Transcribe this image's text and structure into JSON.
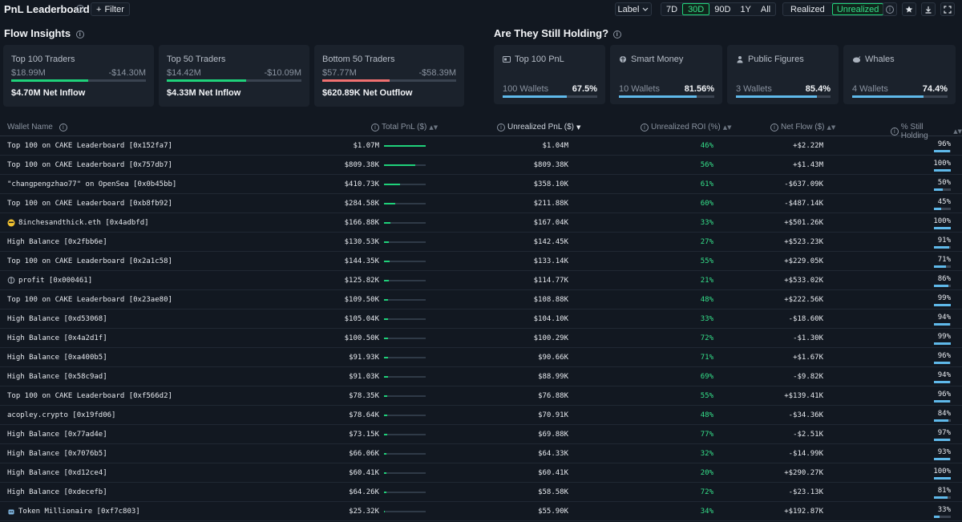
{
  "header": {
    "title": "PnL Leaderboard",
    "filter_label": "Filter",
    "label_dropdown": "Label",
    "timeframes": [
      "7D",
      "30D",
      "90D",
      "1Y",
      "All"
    ],
    "active_timeframe": "30D",
    "modes": [
      "Realized",
      "Unrealized"
    ],
    "active_mode": "Unrealized",
    "tools": [
      "info-icon",
      "star-icon",
      "download-icon",
      "expand-icon"
    ]
  },
  "flow_insights": {
    "title": "Flow Insights",
    "cards": [
      {
        "title": "Top 100 Traders",
        "left": "$18.99M",
        "right": "-$14.30M",
        "net": "$4.70M Net Inflow",
        "left_share": 0.57,
        "color": "#1fd17a"
      },
      {
        "title": "Top 50 Traders",
        "left": "$14.42M",
        "right": "-$10.09M",
        "net": "$4.33M Net Inflow",
        "left_share": 0.59,
        "color": "#1fd17a"
      },
      {
        "title": "Bottom 50 Traders",
        "left": "$57.77M",
        "right": "-$58.39M",
        "net": "$620.89K Net Outflow",
        "left_share": 0.5,
        "color": "#f07070"
      }
    ]
  },
  "holding": {
    "title": "Are They Still Holding?",
    "cards": [
      {
        "title": "Top 100 PnL",
        "icon": "id-card-icon",
        "wallets": "100 Wallets",
        "pct": "67.5%",
        "level": 0.675
      },
      {
        "title": "Smart Money",
        "icon": "brain-icon",
        "wallets": "10 Wallets",
        "pct": "81.56%",
        "level": 0.8156
      },
      {
        "title": "Public Figures",
        "icon": "figure-icon",
        "wallets": "3 Wallets",
        "pct": "85.4%",
        "level": 0.854
      },
      {
        "title": "Whales",
        "icon": "whale-icon",
        "wallets": "4 Wallets",
        "pct": "74.4%",
        "level": 0.744
      }
    ]
  },
  "table": {
    "columns": {
      "wallet": "Wallet Name",
      "total": "Total PnL ($)",
      "unrealized": "Unrealized PnL ($)",
      "roi": "Unrealized ROI (%)",
      "flow": "Net Flow ($)",
      "holding": "% Still Holding"
    },
    "rows": [
      {
        "name": "Top 100 on CAKE Leaderboard [0x152fa7]",
        "icon": "",
        "total": "$1.07M",
        "total_level": 1.0,
        "unreal": "$1.04M",
        "roi": "46%",
        "flow": "+$2.22M",
        "hold": "96%",
        "hold_level": 0.96
      },
      {
        "name": "Top 100 on CAKE Leaderboard [0x757db7]",
        "icon": "",
        "total": "$809.38K",
        "total_level": 0.75,
        "unreal": "$809.38K",
        "roi": "56%",
        "flow": "+$1.43M",
        "hold": "100%",
        "hold_level": 1.0
      },
      {
        "name": "\"changpengzhao77\" on OpenSea [0x0b45bb]",
        "icon": "",
        "total": "$410.73K",
        "total_level": 0.38,
        "unreal": "$358.10K",
        "roi": "61%",
        "flow": "-$637.09K",
        "hold": "50%",
        "hold_level": 0.5
      },
      {
        "name": "Top 100 on CAKE Leaderboard [0xb8fb92]",
        "icon": "",
        "total": "$284.58K",
        "total_level": 0.27,
        "unreal": "$211.88K",
        "roi": "60%",
        "flow": "-$487.14K",
        "hold": "45%",
        "hold_level": 0.45
      },
      {
        "name": "8inchesandthick.eth [0x4adbfd]",
        "icon": "emoji-icon",
        "total": "$166.88K",
        "total_level": 0.16,
        "unreal": "$167.04K",
        "roi": "33%",
        "flow": "+$501.26K",
        "hold": "100%",
        "hold_level": 1.0
      },
      {
        "name": "High Balance [0x2fbb6e]",
        "icon": "",
        "total": "$130.53K",
        "total_level": 0.12,
        "unreal": "$142.45K",
        "roi": "27%",
        "flow": "+$523.23K",
        "hold": "91%",
        "hold_level": 0.91
      },
      {
        "name": "Top 100 on CAKE Leaderboard [0x2a1c58]",
        "icon": "",
        "total": "$144.35K",
        "total_level": 0.13,
        "unreal": "$133.14K",
        "roi": "55%",
        "flow": "+$229.05K",
        "hold": "71%",
        "hold_level": 0.71
      },
      {
        "name": "profit [0x000461]",
        "icon": "brain-icon",
        "total": "$125.82K",
        "total_level": 0.12,
        "unreal": "$114.77K",
        "roi": "21%",
        "flow": "+$533.02K",
        "hold": "86%",
        "hold_level": 0.86
      },
      {
        "name": "Top 100 on CAKE Leaderboard [0x23ae80]",
        "icon": "",
        "total": "$109.50K",
        "total_level": 0.1,
        "unreal": "$108.88K",
        "roi": "48%",
        "flow": "+$222.56K",
        "hold": "99%",
        "hold_level": 0.99
      },
      {
        "name": "High Balance [0xd53068]",
        "icon": "",
        "total": "$105.04K",
        "total_level": 0.1,
        "unreal": "$104.10K",
        "roi": "33%",
        "flow": "-$18.60K",
        "hold": "94%",
        "hold_level": 0.94
      },
      {
        "name": "High Balance [0x4a2d1f]",
        "icon": "",
        "total": "$100.50K",
        "total_level": 0.09,
        "unreal": "$100.29K",
        "roi": "72%",
        "flow": "-$1.30K",
        "hold": "99%",
        "hold_level": 0.99
      },
      {
        "name": "High Balance [0xa400b5]",
        "icon": "",
        "total": "$91.93K",
        "total_level": 0.09,
        "unreal": "$90.66K",
        "roi": "71%",
        "flow": "+$1.67K",
        "hold": "96%",
        "hold_level": 0.96
      },
      {
        "name": "High Balance [0x58c9ad]",
        "icon": "",
        "total": "$91.03K",
        "total_level": 0.09,
        "unreal": "$88.99K",
        "roi": "69%",
        "flow": "-$9.82K",
        "hold": "94%",
        "hold_level": 0.94
      },
      {
        "name": "Top 100 on CAKE Leaderboard [0xf566d2]",
        "icon": "",
        "total": "$78.35K",
        "total_level": 0.07,
        "unreal": "$76.88K",
        "roi": "55%",
        "flow": "+$139.41K",
        "hold": "96%",
        "hold_level": 0.96
      },
      {
        "name": "acopley.crypto [0x19fd06]",
        "icon": "",
        "total": "$78.64K",
        "total_level": 0.07,
        "unreal": "$70.91K",
        "roi": "48%",
        "flow": "-$34.36K",
        "hold": "84%",
        "hold_level": 0.84
      },
      {
        "name": "High Balance [0x77ad4e]",
        "icon": "",
        "total": "$73.15K",
        "total_level": 0.07,
        "unreal": "$69.88K",
        "roi": "77%",
        "flow": "-$2.51K",
        "hold": "97%",
        "hold_level": 0.97
      },
      {
        "name": "High Balance [0x7076b5]",
        "icon": "",
        "total": "$66.06K",
        "total_level": 0.06,
        "unreal": "$64.33K",
        "roi": "32%",
        "flow": "-$14.99K",
        "hold": "93%",
        "hold_level": 0.93
      },
      {
        "name": "High Balance [0xd12ce4]",
        "icon": "",
        "total": "$60.41K",
        "total_level": 0.06,
        "unreal": "$60.41K",
        "roi": "20%",
        "flow": "+$290.27K",
        "hold": "100%",
        "hold_level": 1.0
      },
      {
        "name": "High Balance [0xdecefb]",
        "icon": "",
        "total": "$64.26K",
        "total_level": 0.06,
        "unreal": "$58.58K",
        "roi": "72%",
        "flow": "-$23.13K",
        "hold": "81%",
        "hold_level": 0.81
      },
      {
        "name": "Token Millionaire [0xf7c803]",
        "icon": "robot-icon",
        "total": "$25.32K",
        "total_level": 0.02,
        "unreal": "$55.90K",
        "roi": "34%",
        "flow": "+$192.87K",
        "hold": "33%",
        "hold_level": 0.33
      }
    ]
  },
  "colors": {
    "accent": "#1fd17a",
    "negative": "#f07070",
    "holding_bar": "#5fb9ea",
    "background": "#121821"
  }
}
